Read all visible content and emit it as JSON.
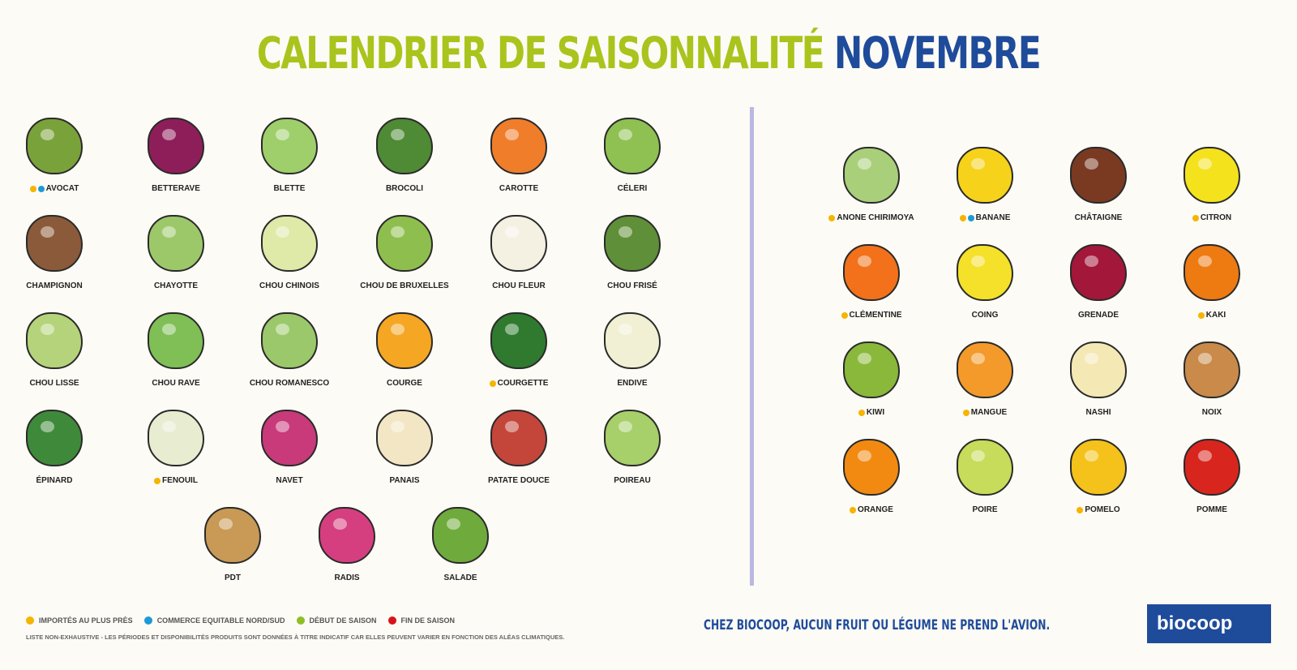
{
  "title": {
    "part1": "CALENDRIER DE SAISONNALITÉ",
    "part2": "NOVEMBRE"
  },
  "colors": {
    "green": "#a9c41c",
    "blue": "#1f4b9b",
    "imported": "#f6b400",
    "fair_trade": "#1e9ad6",
    "season_start": "#8fbf26",
    "season_end": "#d7141a"
  },
  "vegetables": [
    {
      "name": "AVOCAT",
      "dots": [
        "imported",
        "fair_trade"
      ],
      "color": "#7aa23a"
    },
    {
      "name": "BETTERAVE",
      "dots": [],
      "color": "#8e1e5a"
    },
    {
      "name": "BLETTE",
      "dots": [],
      "color": "#9fcf6a"
    },
    {
      "name": "BROCOLI",
      "dots": [],
      "color": "#4f8a35"
    },
    {
      "name": "CAROTTE",
      "dots": [],
      "color": "#f07d2a"
    },
    {
      "name": "CÉLERI",
      "dots": [],
      "color": "#8ec152"
    },
    {
      "name": "CHAMPIGNON",
      "dots": [],
      "color": "#8a5a3a"
    },
    {
      "name": "CHAYOTTE",
      "dots": [],
      "color": "#9cc86a"
    },
    {
      "name": "CHOU CHINOIS",
      "dots": [],
      "color": "#dfe9a8"
    },
    {
      "name": "CHOU DE BRUXELLES",
      "dots": [],
      "color": "#8ebf4e"
    },
    {
      "name": "CHOU FLEUR",
      "dots": [],
      "color": "#f4f1e2"
    },
    {
      "name": "CHOU FRISÉ",
      "dots": [],
      "color": "#5f8f38"
    },
    {
      "name": "CHOU LISSE",
      "dots": [],
      "color": "#b5d37a"
    },
    {
      "name": "CHOU RAVE",
      "dots": [],
      "color": "#7fbf56"
    },
    {
      "name": "CHOU ROMANESCO",
      "dots": [],
      "color": "#9bc86a"
    },
    {
      "name": "COURGE",
      "dots": [],
      "color": "#f5a623"
    },
    {
      "name": "COURGETTE",
      "dots": [
        "imported"
      ],
      "color": "#2f7a2f"
    },
    {
      "name": "ENDIVE",
      "dots": [],
      "color": "#f1f0d4"
    },
    {
      "name": "ÉPINARD",
      "dots": [],
      "color": "#3f8a3a"
    },
    {
      "name": "FENOUIL",
      "dots": [
        "imported"
      ],
      "color": "#e8ecd0"
    },
    {
      "name": "NAVET",
      "dots": [],
      "color": "#c83a7a"
    },
    {
      "name": "PANAIS",
      "dots": [],
      "color": "#f3e6c4"
    },
    {
      "name": "PATATE DOUCE",
      "dots": [],
      "color": "#c4463a"
    },
    {
      "name": "POIREAU",
      "dots": [],
      "color": "#a7cf6a"
    },
    {
      "name": "PDT",
      "dots": [],
      "color": "#c99a55"
    },
    {
      "name": "RADIS",
      "dots": [],
      "color": "#d63f7f"
    },
    {
      "name": "SALADE",
      "dots": [],
      "color": "#6faa3c"
    }
  ],
  "fruits": [
    {
      "name": "ANONE CHIRIMOYA",
      "dots": [
        "imported"
      ],
      "color": "#a9cf7a"
    },
    {
      "name": "BANANE",
      "dots": [
        "imported",
        "fair_trade"
      ],
      "color": "#f6d21a"
    },
    {
      "name": "CHÂTAIGNE",
      "dots": [],
      "color": "#7a3a22"
    },
    {
      "name": "CITRON",
      "dots": [
        "imported"
      ],
      "color": "#f4e21c"
    },
    {
      "name": "CLÉMENTINE",
      "dots": [
        "imported"
      ],
      "color": "#f2711a"
    },
    {
      "name": "COING",
      "dots": [],
      "color": "#f5e02a"
    },
    {
      "name": "GRENADE",
      "dots": [],
      "color": "#a3173a"
    },
    {
      "name": "KAKI",
      "dots": [
        "imported"
      ],
      "color": "#ee7a12"
    },
    {
      "name": "KIWI",
      "dots": [
        "imported"
      ],
      "color": "#8ab83a"
    },
    {
      "name": "MANGUE",
      "dots": [
        "imported"
      ],
      "color": "#f49a2a"
    },
    {
      "name": "NASHI",
      "dots": [],
      "color": "#f4e8b4"
    },
    {
      "name": "NOIX",
      "dots": [],
      "color": "#c98a4a"
    },
    {
      "name": "ORANGE",
      "dots": [
        "imported"
      ],
      "color": "#f28a12"
    },
    {
      "name": "POIRE",
      "dots": [],
      "color": "#c6dc5a"
    },
    {
      "name": "POMELO",
      "dots": [
        "imported"
      ],
      "color": "#f4c21a"
    },
    {
      "name": "POMME",
      "dots": [],
      "color": "#d8261e"
    }
  ],
  "legend": [
    {
      "key": "imported",
      "label": "IMPORTÉS AU PLUS PRÈS"
    },
    {
      "key": "fair_trade",
      "label": "COMMERCE EQUITABLE NORD/SUD"
    },
    {
      "key": "season_start",
      "label": "DÉBUT DE SAISON"
    },
    {
      "key": "season_end",
      "label": "FIN DE SAISON"
    }
  ],
  "note": "LISTE NON-EXHAUSTIVE - LES PÉRIODES ET DISPONIBILITÉS PRODUITS SONT DONNÉES À TITRE INDICATIF CAR ELLES PEUVENT VARIER EN FONCTION DES ALÉAS CLIMATIQUES.",
  "slogan": "CHEZ BIOCOOP, AUCUN FRUIT OU LÉGUME NE PREND L'AVION.",
  "logo": "biocoop"
}
